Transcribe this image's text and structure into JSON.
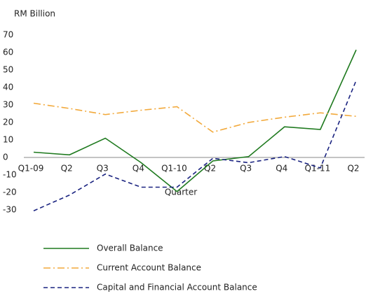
{
  "chart_data": {
    "type": "line",
    "y_label": "RM Billion",
    "x_label": "Quarter",
    "categories": [
      "Q1-09",
      "Q2",
      "Q3",
      "Q4",
      "Q1-10",
      "Q2",
      "Q3",
      "Q4",
      "Q1-11",
      "Q2"
    ],
    "series": [
      {
        "name": "Overall Balance",
        "color": "#1f7a1f",
        "style": "solid",
        "values": [
          3,
          1.5,
          11,
          -3,
          -19.5,
          -2,
          0.5,
          17.5,
          16,
          61.5
        ]
      },
      {
        "name": "Current Account Balance",
        "color": "#f2a93b",
        "style": "dash-dot",
        "values": [
          31,
          28,
          24.5,
          27,
          29,
          14.5,
          20,
          23,
          25.5,
          23.5
        ]
      },
      {
        "name": "Capital and Financial Account Balance",
        "color": "#1a2380",
        "style": "dashed",
        "values": [
          -30.5,
          -21.5,
          -9.5,
          -17,
          -17,
          -0.5,
          -3,
          0.5,
          -6,
          44
        ]
      }
    ],
    "ylim": [
      -30,
      70
    ],
    "yticks": [
      -30,
      -20,
      -10,
      0,
      10,
      20,
      30,
      40,
      50,
      60,
      70
    ],
    "grid": false,
    "legend": "bottom"
  }
}
